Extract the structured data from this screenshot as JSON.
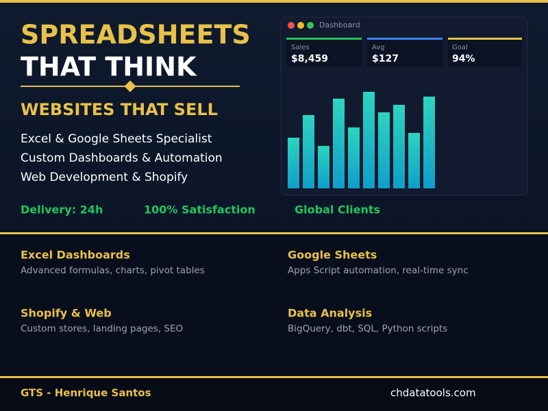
{
  "hero": {
    "title_line1": "SPREADSHEETS",
    "title_line2": "THAT THINK",
    "subtitle": "WEBSITES THAT SELL",
    "services": [
      "Excel & Google Sheets Specialist",
      "Custom Dashboards & Automation",
      "Web Development & Shopify"
    ],
    "highlights": [
      "Delivery: 24h",
      "100% Satisfaction",
      "Global Clients"
    ]
  },
  "dashboard": {
    "title": "Dashboard",
    "cards": [
      {
        "label": "Sales",
        "value": "$8,459"
      },
      {
        "label": "Avg",
        "value": "$127"
      },
      {
        "label": "Goal",
        "value": "94%"
      }
    ],
    "bars": {
      "values": [
        74,
        107,
        62,
        131,
        89,
        141,
        111,
        122,
        81,
        134
      ],
      "ylim": [
        0,
        150
      ]
    }
  },
  "features": [
    {
      "title": "Excel Dashboards",
      "description": "Advanced formulas, charts, pivot tables"
    },
    {
      "title": "Google Sheets",
      "description": "Apps Script automation, real-time sync"
    },
    {
      "title": "Shopify & Web",
      "description": "Custom stores, landing pages, SEO"
    },
    {
      "title": "Data Analysis",
      "description": "BigQuery, dbt, SQL, Python scripts"
    }
  ],
  "footer": {
    "brand": "GTS - Henrique Santos",
    "website": "chdatatools.com"
  }
}
